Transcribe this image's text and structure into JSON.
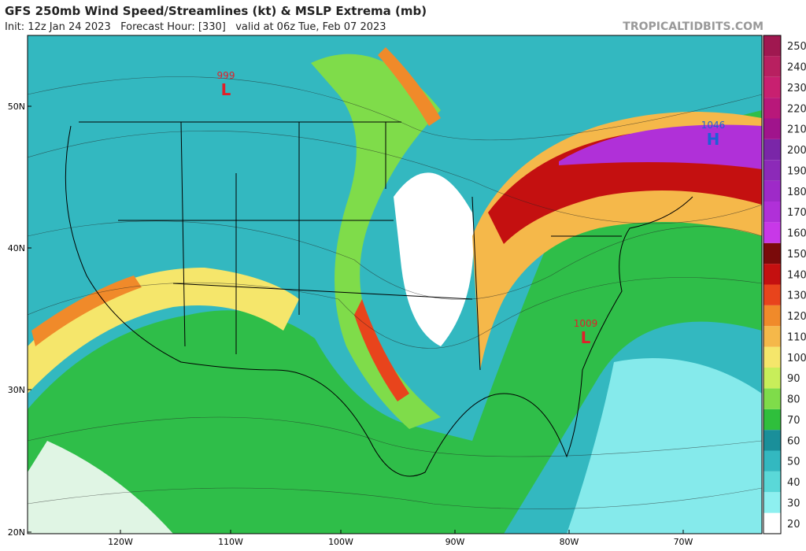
{
  "header": {
    "title": "GFS 250mb Wind Speed/Streamlines (kt) & MSLP Extrema (mb)",
    "subtitle": "Init: 12z Jan 24 2023   Forecast Hour: [330]   valid at 06z Tue, Feb 07 2023",
    "site": "TROPICALTIDBITS.COM"
  },
  "latitude_labels": [
    "50N",
    "40N",
    "30N",
    "20N"
  ],
  "longitude_labels": [
    "120W",
    "110W",
    "100W",
    "90W",
    "80W",
    "70W"
  ],
  "pressure_centers": [
    {
      "value": "999",
      "letter": "L",
      "color": "#e0202a"
    },
    {
      "value": "1046",
      "letter": "H",
      "color": "#1f5fd6"
    },
    {
      "value": "1009",
      "letter": "L",
      "color": "#e0202a"
    }
  ],
  "colorbar": {
    "labels": [
      "20",
      "30",
      "40",
      "50",
      "60",
      "70",
      "80",
      "90",
      "100",
      "110",
      "120",
      "130",
      "140",
      "150",
      "160",
      "170",
      "180",
      "190",
      "200",
      "210",
      "220",
      "230",
      "240",
      "250"
    ],
    "colors": [
      "#ffffff",
      "#8ef0f0",
      "#5ad8d8",
      "#33b8c0",
      "#1a8f9a",
      "#2fbf3c",
      "#7fdc4a",
      "#c8ee5a",
      "#f5e66b",
      "#f5b84a",
      "#f08a2a",
      "#e8441c",
      "#c41010",
      "#7a0a0a",
      "#c838e8",
      "#b030d8",
      "#9e2ac8",
      "#8c2ab8",
      "#7a26a8",
      "#a0148c",
      "#b8187a",
      "#c82070",
      "#b82060",
      "#a01850"
    ]
  }
}
